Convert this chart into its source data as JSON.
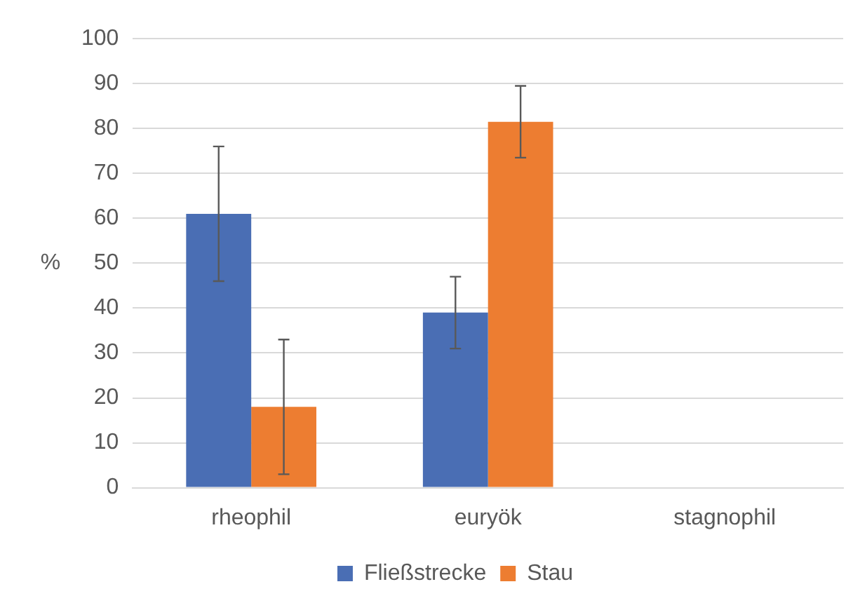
{
  "chart_data": {
    "type": "bar",
    "ylabel": "%",
    "categories": [
      "rheophil",
      "euryök",
      "stagnophil"
    ],
    "series": [
      {
        "name": "Fließstrecke",
        "color": "#4a6eb4",
        "values": [
          61,
          39,
          0
        ],
        "errors": [
          15,
          8,
          null
        ]
      },
      {
        "name": "Stau",
        "color": "#ed7d31",
        "values": [
          18,
          81.5,
          0
        ],
        "errors": [
          15,
          8,
          null
        ]
      }
    ],
    "ylim": [
      0,
      100
    ],
    "yticks": [
      0,
      10,
      20,
      30,
      40,
      50,
      60,
      70,
      80,
      90,
      100
    ],
    "grid": "y",
    "legend": "bottom"
  }
}
